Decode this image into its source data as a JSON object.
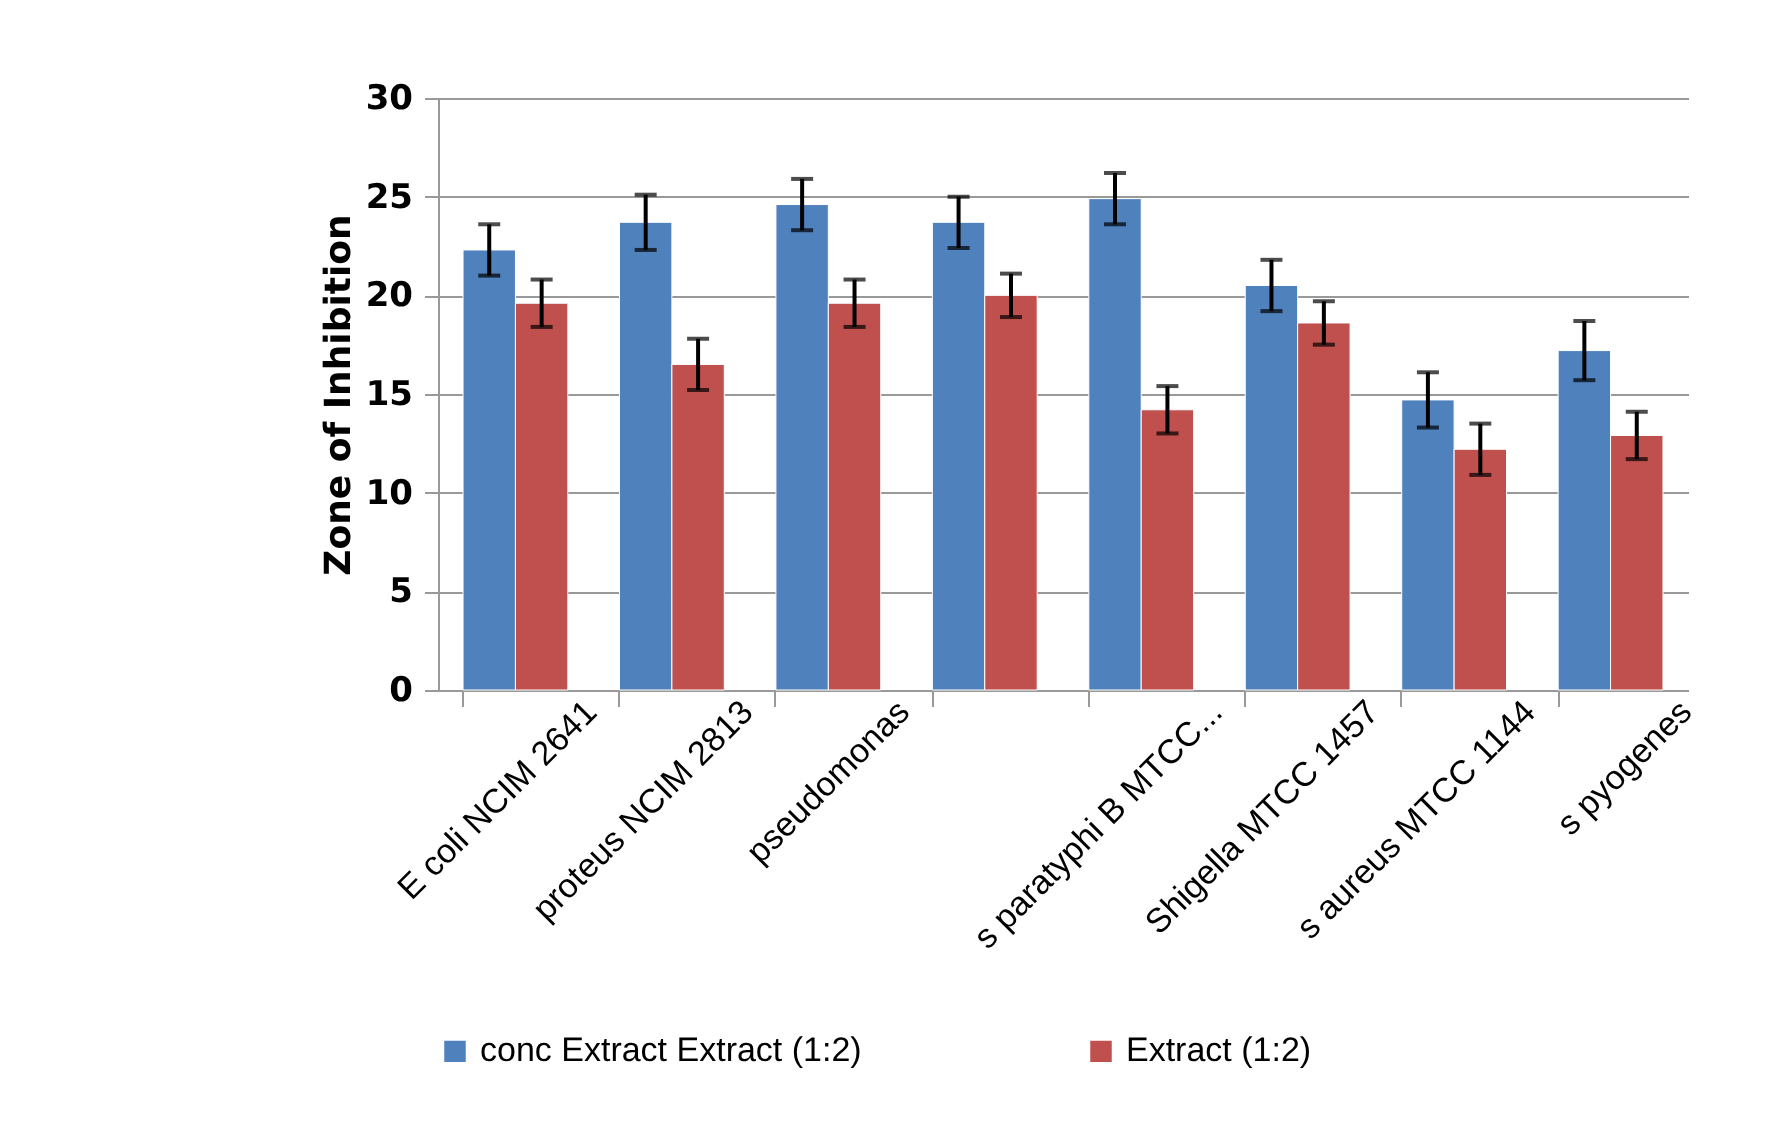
{
  "chart_data": {
    "type": "bar",
    "ylabel": "Zone of Inhibition",
    "categories": [
      "E coli  NCIM 2641",
      "proteus NCIM 2813",
      "pseudomonas",
      null,
      "s paratyphi B MTCC...",
      "Shigella MTCC 1457",
      "s aureus MTCC 1144",
      "s pyogenes"
    ],
    "series": [
      {
        "name": "conc Extract Extract (1:2)",
        "color": "#4f81bd",
        "values": [
          22.3,
          23.7,
          24.6,
          23.7,
          24.9,
          20.5,
          14.7,
          17.2
        ],
        "errors": [
          1.3,
          1.4,
          1.3,
          1.3,
          1.3,
          1.3,
          1.4,
          1.5
        ]
      },
      {
        "name": "Extract (1:2)",
        "color": "#c0504d",
        "values": [
          19.6,
          16.5,
          19.6,
          20.0,
          14.2,
          18.6,
          12.2,
          12.9
        ],
        "errors": [
          1.2,
          1.3,
          1.2,
          1.1,
          1.2,
          1.1,
          1.3,
          1.2
        ]
      }
    ],
    "ylim": [
      0,
      30
    ],
    "yticks": [
      0,
      5,
      10,
      15,
      20,
      25,
      30
    ],
    "grid": "y",
    "legend": "bottom"
  }
}
